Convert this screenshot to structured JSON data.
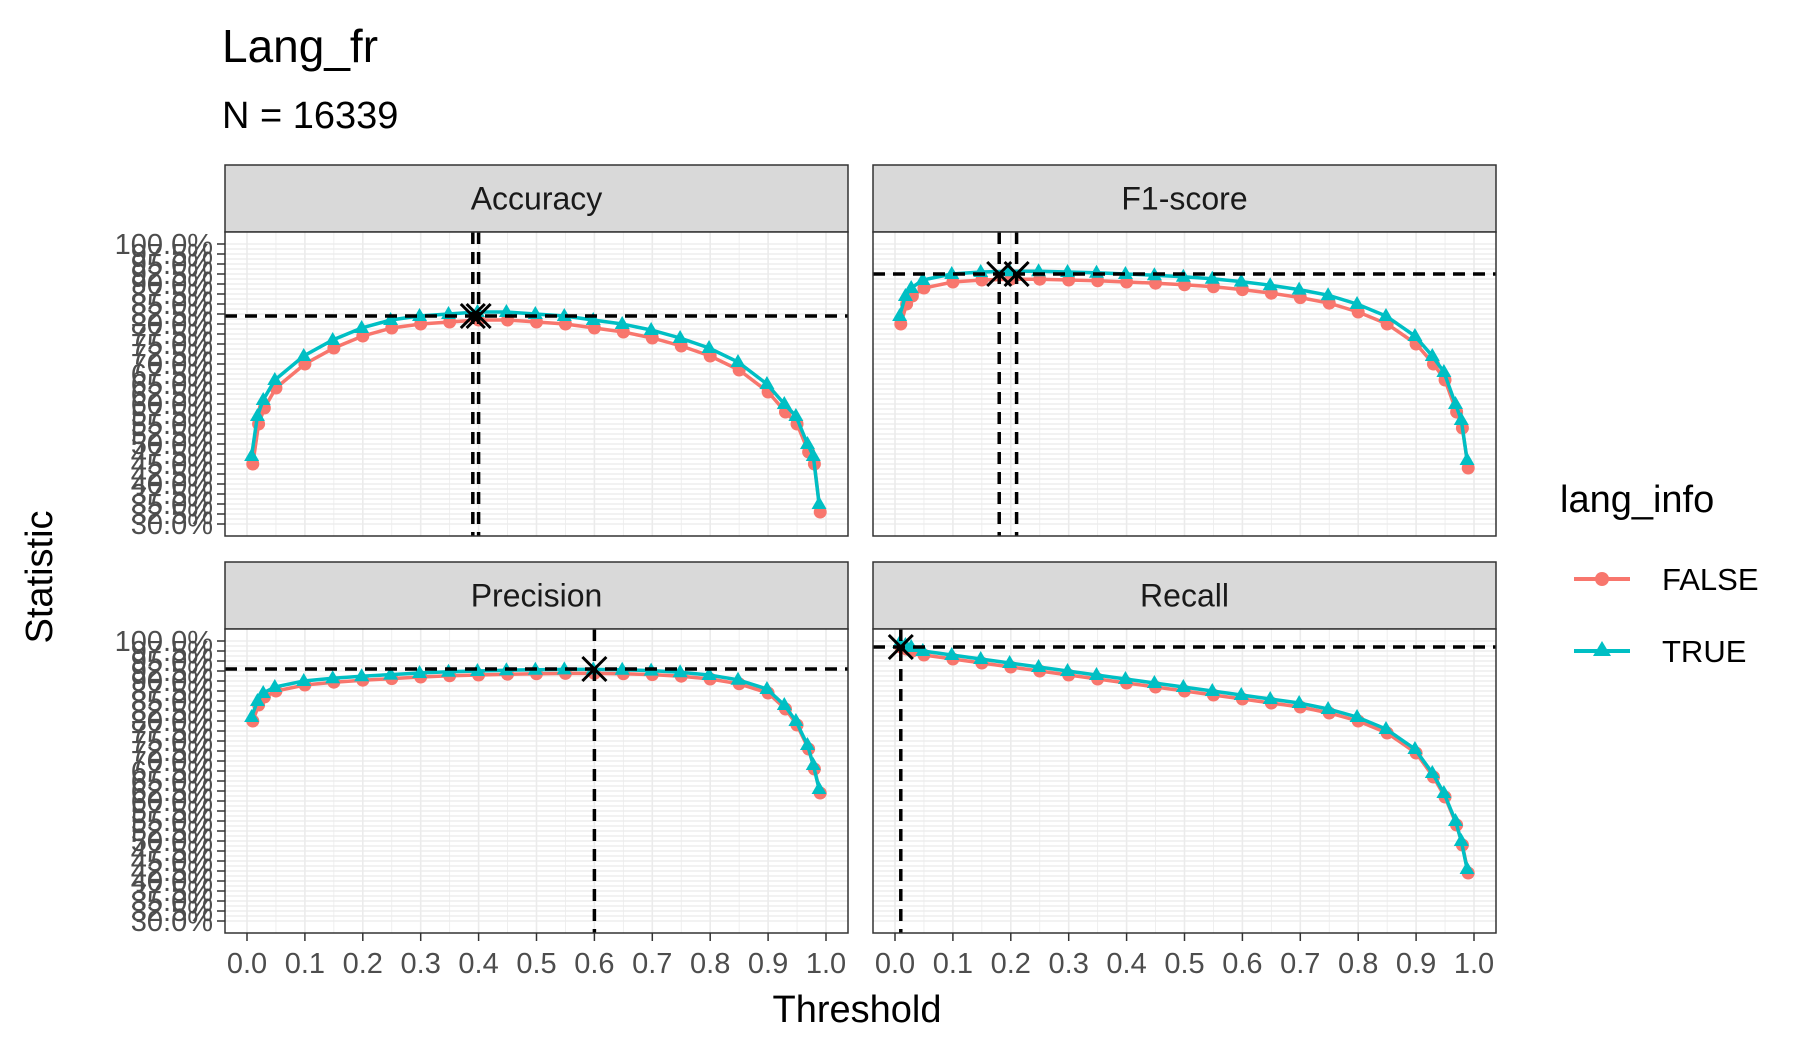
{
  "colors": {
    "false_series": "#F8766D",
    "true_series": "#00BFC4",
    "optimal_marker": "#000000"
  },
  "chart_data": {
    "type": "line",
    "title": "Lang_fr",
    "subtitle": "N = 16339",
    "xlabel": "Threshold",
    "ylabel": "Statistic",
    "xlim": [
      0,
      1
    ],
    "ylim": [
      0.3,
      1.0
    ],
    "x_ticks": [
      "0.0",
      "0.1",
      "0.2",
      "0.3",
      "0.4",
      "0.5",
      "0.6",
      "0.7",
      "0.8",
      "0.9",
      "1.0"
    ],
    "y_ticks_visible": [
      "30.0%",
      "35.0%",
      "40.0%",
      "45.0%",
      "50.0%",
      "55.0%",
      "60.0%",
      "65.0%",
      "70.0%",
      "75.0%",
      "80.0%",
      "85.0%",
      "90.0%",
      "95.0%",
      "97.5%",
      "100.0%"
    ],
    "grid": true,
    "legend": {
      "title": "lang_info",
      "position": "right",
      "entries": [
        {
          "label": "FALSE",
          "marker": "circle"
        },
        {
          "label": "TRUE",
          "marker": "triangle"
        }
      ]
    },
    "x": [
      0.01,
      0.02,
      0.03,
      0.05,
      0.1,
      0.15,
      0.2,
      0.25,
      0.3,
      0.35,
      0.4,
      0.45,
      0.5,
      0.55,
      0.6,
      0.65,
      0.7,
      0.75,
      0.8,
      0.85,
      0.9,
      0.93,
      0.95,
      0.97,
      0.98,
      0.99
    ],
    "panels": [
      {
        "name": "Accuracy",
        "series": [
          {
            "name": "FALSE",
            "values": [
              0.45,
              0.55,
              0.59,
              0.64,
              0.7,
              0.74,
              0.77,
              0.79,
              0.8,
              0.805,
              0.81,
              0.81,
              0.805,
              0.8,
              0.79,
              0.78,
              0.765,
              0.745,
              0.72,
              0.685,
              0.63,
              0.58,
              0.55,
              0.48,
              0.45,
              0.33
            ]
          },
          {
            "name": "TRUE",
            "values": [
              0.47,
              0.57,
              0.61,
              0.66,
              0.72,
              0.76,
              0.79,
              0.81,
              0.82,
              0.825,
              0.83,
              0.83,
              0.825,
              0.82,
              0.81,
              0.8,
              0.785,
              0.765,
              0.74,
              0.705,
              0.65,
              0.6,
              0.57,
              0.5,
              0.47,
              0.35
            ]
          }
        ],
        "optimal_x": [
          0.39,
          0.4
        ],
        "optimal_y": 0.82
      },
      {
        "name": "F1-score",
        "series": [
          {
            "name": "FALSE",
            "values": [
              0.8,
              0.85,
              0.87,
              0.89,
              0.905,
              0.91,
              0.912,
              0.912,
              0.91,
              0.908,
              0.905,
              0.902,
              0.898,
              0.893,
              0.886,
              0.877,
              0.866,
              0.852,
              0.83,
              0.8,
              0.75,
              0.7,
              0.66,
              0.58,
              0.54,
              0.44
            ]
          },
          {
            "name": "TRUE",
            "values": [
              0.82,
              0.87,
              0.89,
              0.91,
              0.925,
              0.93,
              0.932,
              0.932,
              0.93,
              0.928,
              0.925,
              0.922,
              0.918,
              0.913,
              0.906,
              0.897,
              0.886,
              0.872,
              0.85,
              0.82,
              0.77,
              0.72,
              0.68,
              0.6,
              0.56,
              0.46
            ]
          }
        ],
        "optimal_x": [
          0.18,
          0.21
        ],
        "optimal_y": 0.925
      },
      {
        "name": "Precision",
        "series": [
          {
            "name": "FALSE",
            "values": [
              0.8,
              0.84,
              0.86,
              0.875,
              0.89,
              0.897,
              0.902,
              0.906,
              0.91,
              0.913,
              0.915,
              0.917,
              0.918,
              0.919,
              0.919,
              0.918,
              0.916,
              0.912,
              0.905,
              0.893,
              0.87,
              0.83,
              0.79,
              0.73,
              0.68,
              0.62
            ]
          },
          {
            "name": "TRUE",
            "values": [
              0.81,
              0.85,
              0.87,
              0.885,
              0.9,
              0.907,
              0.912,
              0.916,
              0.92,
              0.923,
              0.925,
              0.927,
              0.928,
              0.929,
              0.929,
              0.928,
              0.926,
              0.922,
              0.915,
              0.903,
              0.88,
              0.84,
              0.8,
              0.74,
              0.69,
              0.63
            ]
          }
        ],
        "optimal_x": [
          0.6
        ],
        "optimal_y": 0.93
      },
      {
        "name": "Recall",
        "series": [
          {
            "name": "FALSE",
            "values": [
              0.985,
              0.98,
              0.975,
              0.965,
              0.955,
              0.945,
              0.935,
              0.925,
              0.915,
              0.905,
              0.895,
              0.885,
              0.875,
              0.865,
              0.855,
              0.845,
              0.835,
              0.82,
              0.8,
              0.77,
              0.72,
              0.66,
              0.61,
              0.54,
              0.49,
              0.42
            ]
          },
          {
            "name": "TRUE",
            "values": [
              0.995,
              0.99,
              0.985,
              0.975,
              0.965,
              0.955,
              0.945,
              0.935,
              0.925,
              0.915,
              0.905,
              0.895,
              0.885,
              0.875,
              0.865,
              0.855,
              0.845,
              0.83,
              0.81,
              0.78,
              0.73,
              0.67,
              0.62,
              0.55,
              0.5,
              0.43
            ]
          }
        ],
        "optimal_x": [
          0.01
        ],
        "optimal_y": 0.985
      }
    ]
  }
}
